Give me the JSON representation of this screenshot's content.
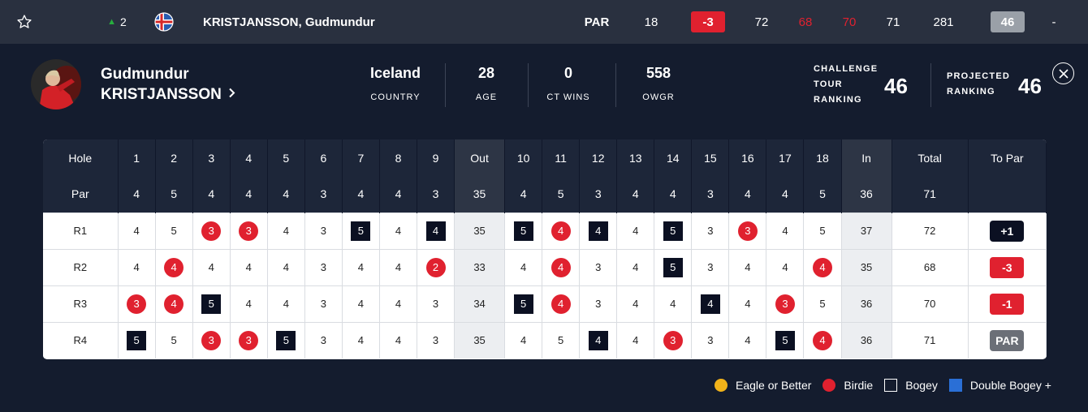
{
  "topbar": {
    "movement": "2",
    "player_name": "KRISTJANSSON, Gudmundur",
    "thru_label": "PAR",
    "thru_value": "18",
    "to_par": "-3",
    "rounds": [
      "72",
      "68",
      "70",
      "71"
    ],
    "total": "281",
    "points": "46",
    "dash": "-"
  },
  "profile": {
    "first_name": "Gudmundur",
    "last_name": "KRISTJANSSON",
    "stats": [
      {
        "value": "Iceland",
        "label": "COUNTRY"
      },
      {
        "value": "28",
        "label": "AGE"
      },
      {
        "value": "0",
        "label": "CT WINS"
      },
      {
        "value": "558",
        "label": "OWGR"
      }
    ],
    "ct_ranking_label": [
      "CHALLENGE",
      "TOUR",
      "RANKING"
    ],
    "ct_ranking_value": "46",
    "projected_label": [
      "PROJECTED",
      "RANKING"
    ],
    "projected_value": "46"
  },
  "scorecard": {
    "hole_label": "Hole",
    "par_label": "Par",
    "holes": [
      "1",
      "2",
      "3",
      "4",
      "5",
      "6",
      "7",
      "8",
      "9",
      "Out",
      "10",
      "11",
      "12",
      "13",
      "14",
      "15",
      "16",
      "17",
      "18",
      "In",
      "Total",
      "To Par"
    ],
    "pars": [
      "4",
      "5",
      "4",
      "4",
      "4",
      "3",
      "4",
      "4",
      "3",
      "35",
      "4",
      "5",
      "3",
      "4",
      "4",
      "3",
      "4",
      "4",
      "5",
      "36",
      "71",
      ""
    ],
    "rounds": [
      {
        "label": "R1",
        "scores": [
          "4",
          "5",
          "3",
          "3",
          "4",
          "3",
          "5",
          "4",
          "4",
          "35",
          "5",
          "4",
          "4",
          "4",
          "5",
          "3",
          "3",
          "4",
          "5",
          "37",
          "72"
        ],
        "to_par": "+1"
      },
      {
        "label": "R2",
        "scores": [
          "4",
          "4",
          "4",
          "4",
          "4",
          "3",
          "4",
          "4",
          "2",
          "33",
          "4",
          "4",
          "3",
          "4",
          "5",
          "3",
          "4",
          "4",
          "4",
          "35",
          "68"
        ],
        "to_par": "-3"
      },
      {
        "label": "R3",
        "scores": [
          "3",
          "4",
          "5",
          "4",
          "4",
          "3",
          "4",
          "4",
          "3",
          "34",
          "5",
          "4",
          "3",
          "4",
          "4",
          "4",
          "4",
          "3",
          "5",
          "36",
          "70"
        ],
        "to_par": "-1"
      },
      {
        "label": "R4",
        "scores": [
          "5",
          "5",
          "3",
          "3",
          "5",
          "3",
          "4",
          "4",
          "3",
          "35",
          "4",
          "5",
          "4",
          "4",
          "3",
          "3",
          "4",
          "5",
          "4",
          "36",
          "71"
        ],
        "to_par": "PAR"
      }
    ]
  },
  "legend": [
    {
      "label": "Eagle or Better",
      "color": "#f2b31a"
    },
    {
      "label": "Birdie",
      "color": "#e0212f"
    },
    {
      "label": "Bogey",
      "color": "#ffffff"
    },
    {
      "label": "Double Bogey +",
      "color": "#2a6fd6"
    }
  ]
}
